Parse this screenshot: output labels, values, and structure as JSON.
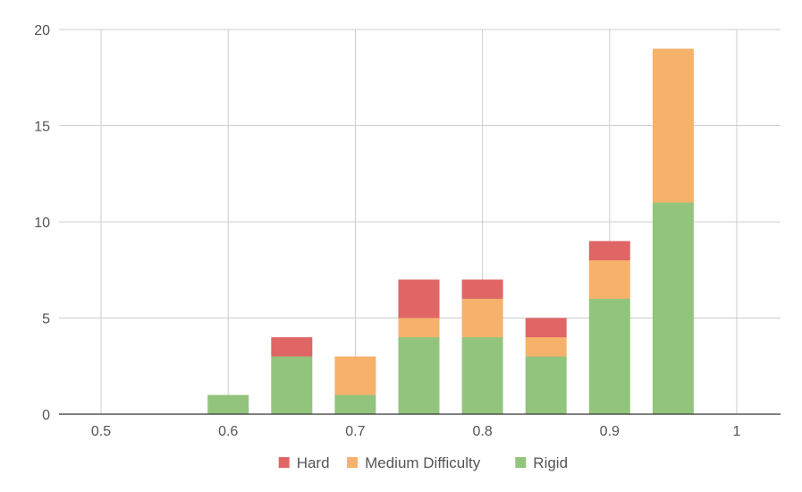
{
  "chart_data": {
    "type": "bar",
    "stacked": true,
    "title": "",
    "xlabel": "",
    "ylabel": "",
    "x": [
      0.6,
      0.65,
      0.7,
      0.75,
      0.8,
      0.85,
      0.9,
      0.95
    ],
    "xlim": [
      0.5,
      1.0
    ],
    "xticks": [
      "0.5",
      "0.6",
      "0.7",
      "0.8",
      "0.9",
      "1"
    ],
    "ylim": [
      0,
      20
    ],
    "yticks": [
      "0",
      "5",
      "10",
      "15",
      "20"
    ],
    "grid": true,
    "legend_position": "bottom",
    "series": [
      {
        "name": "Rigid",
        "color": "#93c47d",
        "values": [
          1,
          3,
          1,
          4,
          4,
          3,
          6,
          11
        ]
      },
      {
        "name": "Medium Difficulty",
        "color": "#f6b26b",
        "values": [
          0,
          0,
          2,
          1,
          2,
          1,
          2,
          8
        ]
      },
      {
        "name": "Hard",
        "color": "#e06666",
        "values": [
          0,
          1,
          0,
          2,
          1,
          1,
          1,
          0
        ]
      }
    ],
    "legend_order": [
      "Hard",
      "Medium Difficulty",
      "Rigid"
    ]
  }
}
